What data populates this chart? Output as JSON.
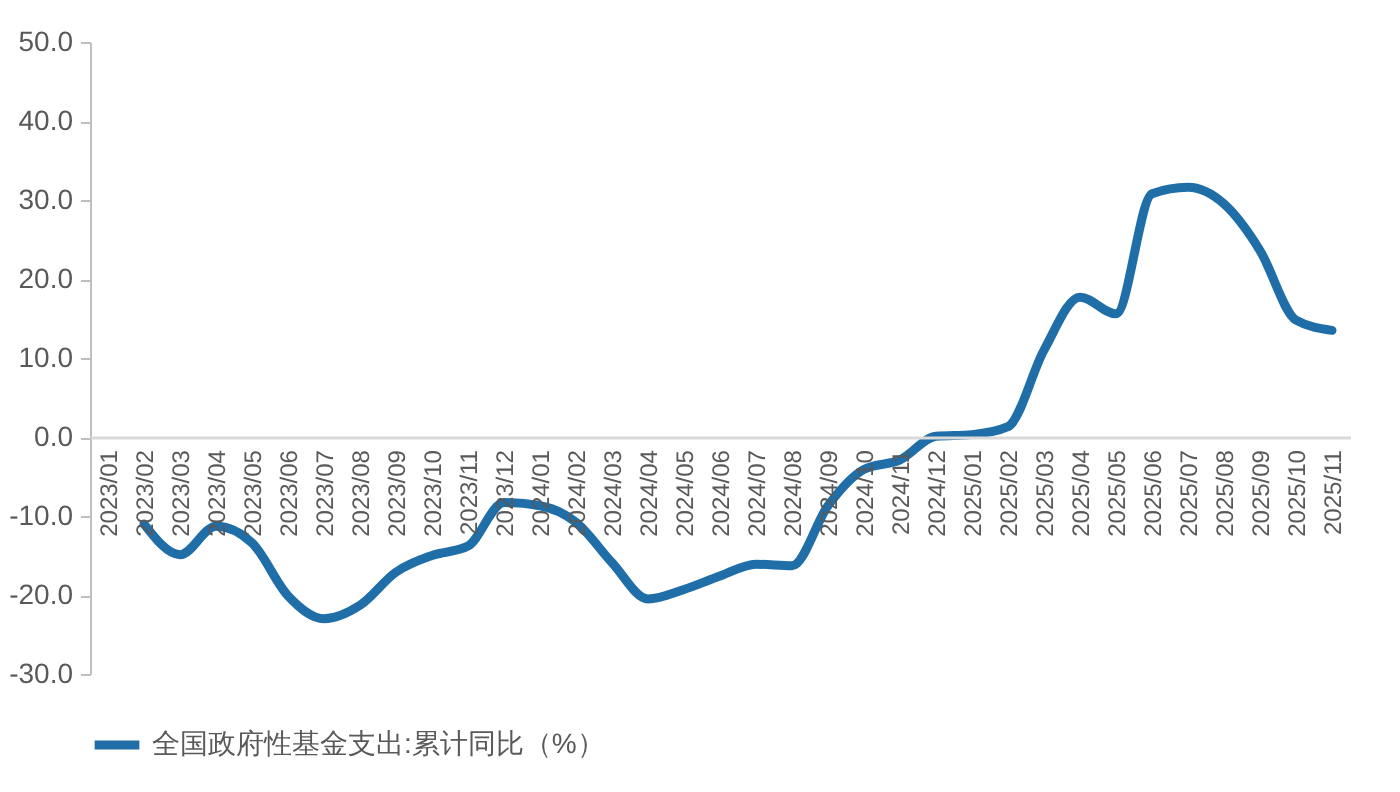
{
  "chart_data": {
    "type": "line",
    "categories": [
      "2023/01",
      "2023/02",
      "2023/03",
      "2023/04",
      "2023/05",
      "2023/06",
      "2023/07",
      "2023/08",
      "2023/09",
      "2023/10",
      "2023/11",
      "2023/12",
      "2024/01",
      "2024/02",
      "2024/03",
      "2024/04",
      "2024/05",
      "2024/06",
      "2024/07",
      "2024/08",
      "2024/09",
      "2024/10",
      "2024/11",
      "2024/12",
      "2025/01",
      "2025/02",
      "2025/03",
      "2025/04",
      "2025/05",
      "2025/06",
      "2025/07",
      "2025/08",
      "2025/09",
      "2025/10",
      "2025/11"
    ],
    "series": [
      {
        "name": "全国政府性基金支出:累计同比（%）",
        "color": "#1f6ea8",
        "values": [
          null,
          -11,
          -14.9,
          -11.3,
          -13.4,
          -20.1,
          -23,
          -21.3,
          -17.1,
          -15,
          -13.8,
          -8.3,
          -8.7,
          -10.8,
          -15.9,
          -20.5,
          -19.3,
          -17.6,
          -16.1,
          -16.3,
          -8.7,
          -4.1,
          -2.9,
          0.1,
          0.3,
          1.3,
          11,
          17.7,
          15.6,
          30.8,
          31.6,
          29.5,
          23.6,
          14.8,
          13.5
        ]
      }
    ],
    "ylim": [
      -30,
      50
    ],
    "yticks": [
      {
        "value": -30,
        "label": "-30.0"
      },
      {
        "value": -20,
        "label": "-20.0"
      },
      {
        "value": -10,
        "label": "-10.0"
      },
      {
        "value": 0,
        "label": "0.0"
      },
      {
        "value": 10,
        "label": "10.0"
      },
      {
        "value": 20,
        "label": "20.0"
      },
      {
        "value": 30,
        "label": "30.0"
      },
      {
        "value": 40,
        "label": "40.0"
      },
      {
        "value": 50,
        "label": "50.0"
      }
    ],
    "legend": "bottom",
    "grid": false
  }
}
